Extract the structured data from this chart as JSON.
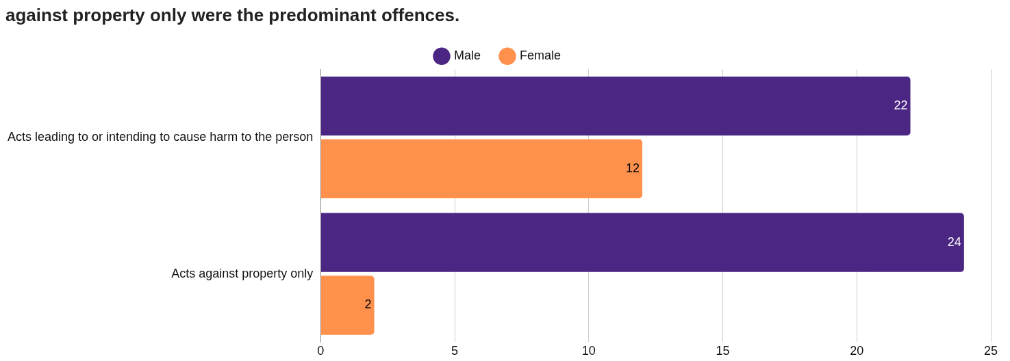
{
  "chart_data": {
    "type": "bar",
    "orientation": "horizontal",
    "title": "against property only were the predominant offences.",
    "categories": [
      "Acts leading to or intending to cause harm to the person",
      "Acts against property only"
    ],
    "series": [
      {
        "name": "Male",
        "color": "#4b2683",
        "values": [
          22,
          24
        ]
      },
      {
        "name": "Female",
        "color": "#ff914d",
        "values": [
          12,
          2
        ]
      }
    ],
    "xlim": [
      0,
      25
    ],
    "xticks": [
      0,
      5,
      10,
      15,
      20,
      25
    ],
    "grid": "x",
    "legend": "top",
    "data_labels": true
  }
}
